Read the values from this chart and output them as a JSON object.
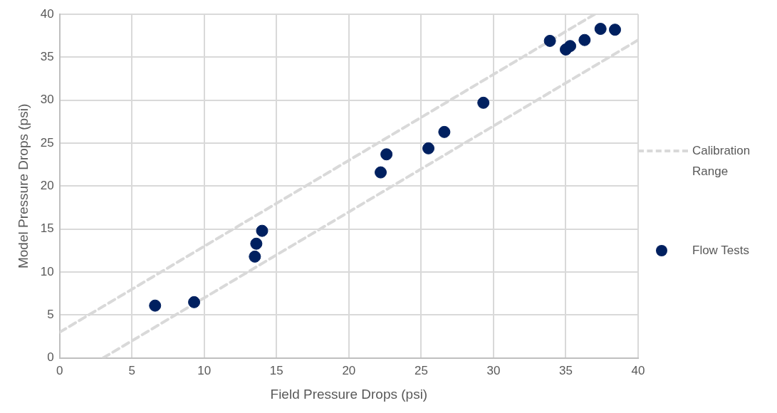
{
  "chart_data": {
    "type": "scatter",
    "xlabel": "Field Pressure Drops (psi)",
    "ylabel": "Model Pressure Drops (psi)",
    "xlim": [
      0,
      40
    ],
    "xticks": [
      0,
      5,
      10,
      15,
      20,
      25,
      30,
      35,
      40
    ],
    "ylim": [
      0,
      40
    ],
    "yticks": [
      0,
      5,
      10,
      15,
      20,
      25,
      30,
      35,
      40
    ],
    "grid": true,
    "legend": "right",
    "series": [
      {
        "name": "Calibration Range",
        "type": "line",
        "color": "#d9d9d9",
        "line_style": "dashed",
        "marker": "none",
        "x": [
          0,
          37,
          null,
          3,
          40
        ],
        "values": [
          3,
          40,
          null,
          0,
          37
        ]
      },
      {
        "name": "Flow Tests",
        "type": "scatter",
        "color": "#002060",
        "marker": "circle",
        "x": [
          6.6,
          9.3,
          13.5,
          13.6,
          14.0,
          22.2,
          22.6,
          25.5,
          26.6,
          29.3,
          33.9,
          35.0,
          35.3,
          36.3,
          37.4,
          38.4
        ],
        "values": [
          6.1,
          6.5,
          11.8,
          13.3,
          14.8,
          21.6,
          23.7,
          24.4,
          26.3,
          29.7,
          36.9,
          35.9,
          36.3,
          37.0,
          38.3,
          38.2
        ]
      }
    ]
  }
}
